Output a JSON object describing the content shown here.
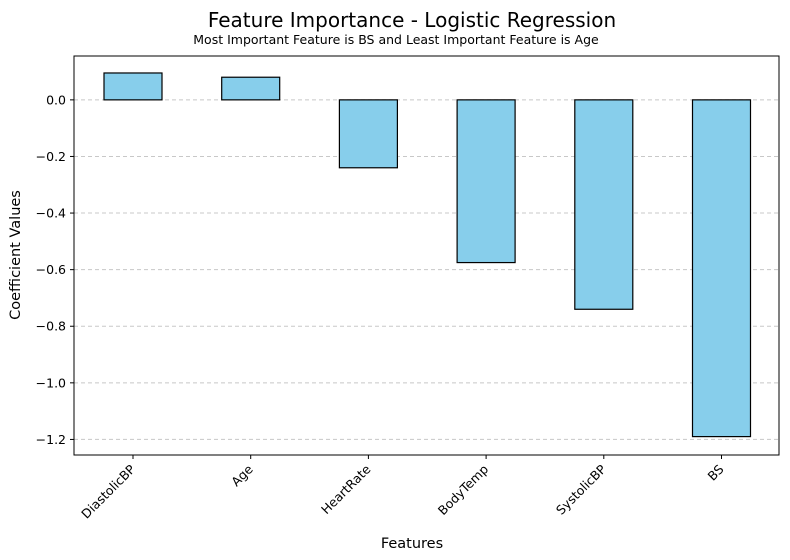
{
  "chart_data": {
    "type": "bar",
    "title": "Feature Importance - Logistic Regression",
    "subtitle": "Most Important Feature is BS and Least Important Feature is Age",
    "xlabel": "Features",
    "ylabel": "Coefficient Values",
    "categories": [
      "DiastolicBP",
      "Age",
      "HeartRate",
      "BodyTemp",
      "SystolicBP",
      "BS"
    ],
    "values": [
      0.095,
      0.08,
      -0.24,
      -0.575,
      -0.74,
      -1.19
    ],
    "ylim": [
      -1.255,
      0.155
    ],
    "yticks": [
      0.0,
      -0.2,
      -0.4,
      -0.6,
      -0.8,
      -1.0,
      -1.2
    ],
    "ytick_labels": [
      "0.0",
      "−0.2",
      "−0.4",
      "−0.6",
      "−0.8",
      "−1.0",
      "−1.2"
    ],
    "grid": "y-dashed",
    "bar_color": "#87CEEB",
    "edge_color": "#000000"
  }
}
